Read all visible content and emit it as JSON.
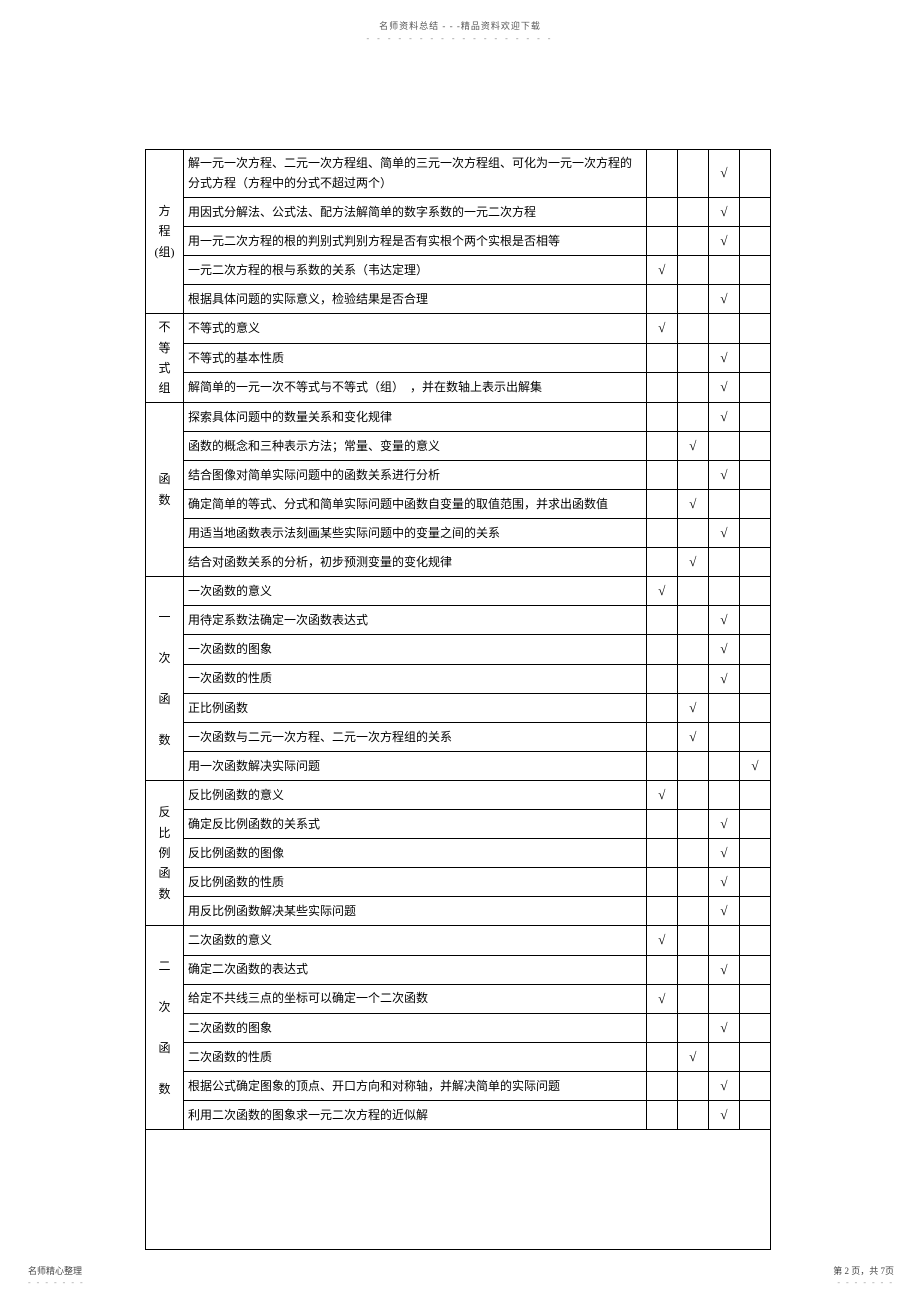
{
  "header": {
    "title": "名师资料总结 - - -精品资料欢迎下载",
    "dots": "- - - - - - - - - - - - - - - - - -"
  },
  "footer": {
    "left": "名师精心整理",
    "left_dots": "- - - - - - -",
    "right": "第 2 页，共 7页",
    "right_dots": "- - - - - - -"
  },
  "check": "√",
  "rows": [
    {
      "cat": "方程(组)",
      "rs": 5,
      "c": "解一元一次方程、二元一次方程组、简单的三元一次方程组、可化为一元一次方程的分式方程（方程中的分式不超过两个）",
      "m": [
        0,
        0,
        1,
        0
      ]
    },
    {
      "c": "用因式分解法、公式法、配方法解简单的数字系数的一元二次方程",
      "m": [
        0,
        0,
        1,
        0
      ]
    },
    {
      "c": "用一元二次方程的根的判别式判别方程是否有实根个两个实根是否相等",
      "m": [
        0,
        0,
        1,
        0
      ]
    },
    {
      "c": "一元二次方程的根与系数的关系（韦达定理）",
      "m": [
        1,
        0,
        0,
        0
      ]
    },
    {
      "c": "根据具体问题的实际意义，检验结果是否合理",
      "m": [
        0,
        0,
        1,
        0
      ]
    },
    {
      "cat": "不等式组",
      "rs": 3,
      "c": "不等式的意义",
      "m": [
        1,
        0,
        0,
        0
      ]
    },
    {
      "c": "不等式的基本性质",
      "m": [
        0,
        0,
        1,
        0
      ]
    },
    {
      "c": "解简单的一元一次不等式与不等式（组）　，并在数轴上表示出解集",
      "m": [
        0,
        0,
        1,
        0
      ]
    },
    {
      "cat": "函数",
      "rs": 6,
      "c": "探索具体问题中的数量关系和变化规律",
      "m": [
        0,
        0,
        1,
        0
      ]
    },
    {
      "c": "函数的概念和三种表示方法；常量、变量的意义",
      "m": [
        0,
        1,
        0,
        0
      ]
    },
    {
      "c": "结合图像对简单实际问题中的函数关系进行分析",
      "m": [
        0,
        0,
        1,
        0
      ]
    },
    {
      "c": "确定简单的等式、分式和简单实际问题中函数自变量的取值范围，并求出函数值",
      "m": [
        0,
        1,
        0,
        0
      ]
    },
    {
      "c": "用适当地函数表示法刻画某些实际问题中的变量之间的关系",
      "m": [
        0,
        0,
        1,
        0
      ]
    },
    {
      "c": "结合对函数关系的分析，初步预测变量的变化规律",
      "m": [
        0,
        1,
        0,
        0
      ]
    },
    {
      "cat": "一次函数",
      "rs": 7,
      "c": "一次函数的意义",
      "m": [
        1,
        0,
        0,
        0
      ]
    },
    {
      "c": "用待定系数法确定一次函数表达式",
      "m": [
        0,
        0,
        1,
        0
      ]
    },
    {
      "c": "一次函数的图象",
      "m": [
        0,
        0,
        1,
        0
      ]
    },
    {
      "c": "一次函数的性质",
      "m": [
        0,
        0,
        1,
        0
      ]
    },
    {
      "c": "正比例函数",
      "m": [
        0,
        1,
        0,
        0
      ]
    },
    {
      "c": "一次函数与二元一次方程、二元一次方程组的关系",
      "m": [
        0,
        1,
        0,
        0
      ]
    },
    {
      "c": "用一次函数解决实际问题",
      "m": [
        0,
        0,
        0,
        1
      ]
    },
    {
      "cat": "反比例函数",
      "rs": 5,
      "c": "反比例函数的意义",
      "m": [
        1,
        0,
        0,
        0
      ]
    },
    {
      "c": "确定反比例函数的关系式",
      "m": [
        0,
        0,
        1,
        0
      ]
    },
    {
      "c": "反比例函数的图像",
      "m": [
        0,
        0,
        1,
        0
      ]
    },
    {
      "c": "反比例函数的性质",
      "m": [
        0,
        0,
        1,
        0
      ]
    },
    {
      "c": "用反比例函数解决某些实际问题",
      "m": [
        0,
        0,
        1,
        0
      ]
    },
    {
      "cat": "二次函数",
      "rs": 7,
      "c": "二次函数的意义",
      "m": [
        1,
        0,
        0,
        0
      ]
    },
    {
      "c": "确定二次函数的表达式",
      "m": [
        0,
        0,
        1,
        0
      ]
    },
    {
      "c": "给定不共线三点的坐标可以确定一个二次函数",
      "m": [
        1,
        0,
        0,
        0
      ]
    },
    {
      "c": "二次函数的图象",
      "m": [
        0,
        0,
        1,
        0
      ]
    },
    {
      "c": "二次函数的性质",
      "m": [
        0,
        1,
        0,
        0
      ]
    },
    {
      "c": "根据公式确定图象的顶点、开口方向和对称轴，并解决简单的实际问题",
      "m": [
        0,
        0,
        1,
        0
      ]
    },
    {
      "c": "利用二次函数的图象求一元二次方程的近似解",
      "m": [
        0,
        0,
        1,
        0
      ]
    }
  ],
  "catLabels": {
    "方程(组)": "方<br>程<br>(组)",
    "不等式组": "不<br>等<br>式<br>组",
    "函数": "函<br>数",
    "一次函数": "一<br><br>次<br><br>函<br><br>数",
    "反比例函数": "反<br>比<br>例<br>函<br>数",
    "二次函数": "二<br><br>次<br><br>函<br><br>数"
  }
}
